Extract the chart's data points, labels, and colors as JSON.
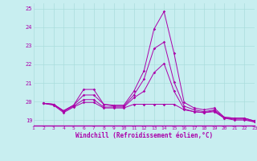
{
  "title": "",
  "xlabel": "Windchill (Refroidissement éolien,°C)",
  "ylabel": "",
  "background_color": "#c8eef0",
  "grid_color": "#aadddd",
  "line_color": "#aa00aa",
  "xlim": [
    1,
    23
  ],
  "ylim": [
    18.7,
    25.3
  ],
  "yticks": [
    19,
    20,
    21,
    22,
    23,
    24,
    25
  ],
  "xticks": [
    1,
    2,
    3,
    4,
    5,
    6,
    7,
    8,
    9,
    10,
    11,
    12,
    13,
    14,
    15,
    16,
    17,
    18,
    19,
    20,
    21,
    22,
    23
  ],
  "series": [
    [
      19.9,
      19.85,
      19.5,
      19.8,
      20.65,
      20.65,
      19.85,
      19.8,
      19.8,
      20.55,
      21.65,
      23.9,
      24.85,
      22.6,
      19.95,
      19.65,
      19.55,
      19.65,
      19.15,
      19.1,
      19.1,
      18.95
    ],
    [
      19.9,
      19.85,
      19.5,
      19.8,
      20.35,
      20.35,
      19.85,
      19.75,
      19.75,
      20.35,
      21.2,
      22.85,
      23.2,
      21.05,
      19.75,
      19.55,
      19.45,
      19.55,
      19.15,
      19.1,
      19.1,
      18.95
    ],
    [
      19.9,
      19.85,
      19.45,
      19.75,
      20.1,
      20.1,
      19.7,
      19.7,
      19.7,
      20.2,
      20.55,
      21.55,
      22.05,
      20.55,
      19.6,
      19.45,
      19.4,
      19.5,
      19.1,
      19.05,
      19.05,
      18.9
    ],
    [
      19.9,
      19.8,
      19.4,
      19.7,
      19.95,
      19.95,
      19.65,
      19.65,
      19.65,
      19.85,
      19.85,
      19.85,
      19.85,
      19.85,
      19.55,
      19.45,
      19.4,
      19.45,
      19.1,
      19.0,
      19.0,
      18.9
    ]
  ],
  "x_series_start": 2
}
